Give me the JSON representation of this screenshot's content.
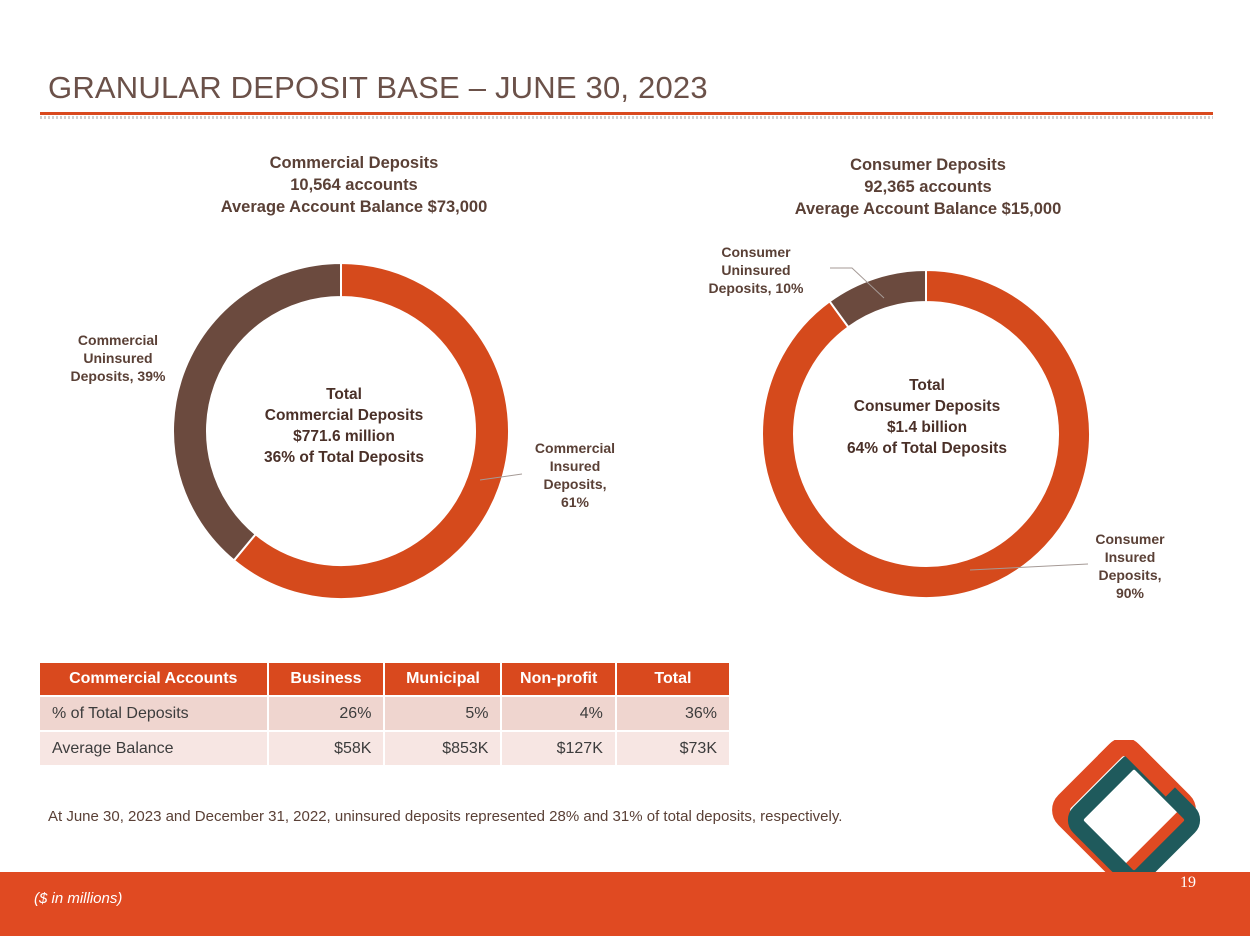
{
  "title": "GRANULAR DEPOSIT BASE – JUNE 30, 2023",
  "colors": {
    "accent": "#d9491e",
    "insured": "#d54a1c",
    "uninsured": "#6b4a3e",
    "logo_teal": "#1f5a5c"
  },
  "commercial_header": [
    "Commercial Deposits",
    "10,564 accounts",
    "Average Account Balance $73,000"
  ],
  "consumer_header": [
    "Consumer Deposits",
    "92,365 accounts",
    "Average Account Balance $15,000"
  ],
  "commercial_center": [
    "Total",
    "Commercial Deposits",
    "$771.6 million",
    "36% of Total Deposits"
  ],
  "consumer_center": [
    "Total",
    "Consumer Deposits",
    "$1.4 billion",
    "64% of Total Deposits"
  ],
  "chart_data": [
    {
      "type": "pie",
      "title": "Commercial Deposits",
      "categories": [
        "Commercial Insured Deposits",
        "Commercial Uninsured Deposits"
      ],
      "values": [
        61,
        39
      ],
      "labels": [
        [
          "Commercial",
          "Insured",
          "Deposits,",
          "61%"
        ],
        [
          "Commercial",
          "Uninsured",
          "Deposits, 39%"
        ]
      ]
    },
    {
      "type": "pie",
      "title": "Consumer Deposits",
      "categories": [
        "Consumer Insured Deposits",
        "Consumer Uninsured Deposits"
      ],
      "values": [
        90,
        10
      ],
      "labels": [
        [
          "Consumer",
          "Insured",
          "Deposits,",
          "90%"
        ],
        [
          "Consumer",
          "Uninsured",
          "Deposits, 10%"
        ]
      ]
    }
  ],
  "table": {
    "headers": [
      "Commercial Accounts",
      "Business",
      "Municipal",
      "Non-profit",
      "Total"
    ],
    "rows": [
      [
        "% of Total Deposits",
        "26%",
        "5%",
        "4%",
        "36%"
      ],
      [
        "Average Balance",
        "$58K",
        "$853K",
        "$127K",
        "$73K"
      ]
    ]
  },
  "footnote": "At June 30, 2023 and December 31, 2022, uninsured deposits represented 28% and 31% of total deposits, respectively.",
  "units_note": "($ in millions)",
  "page_number": "19"
}
